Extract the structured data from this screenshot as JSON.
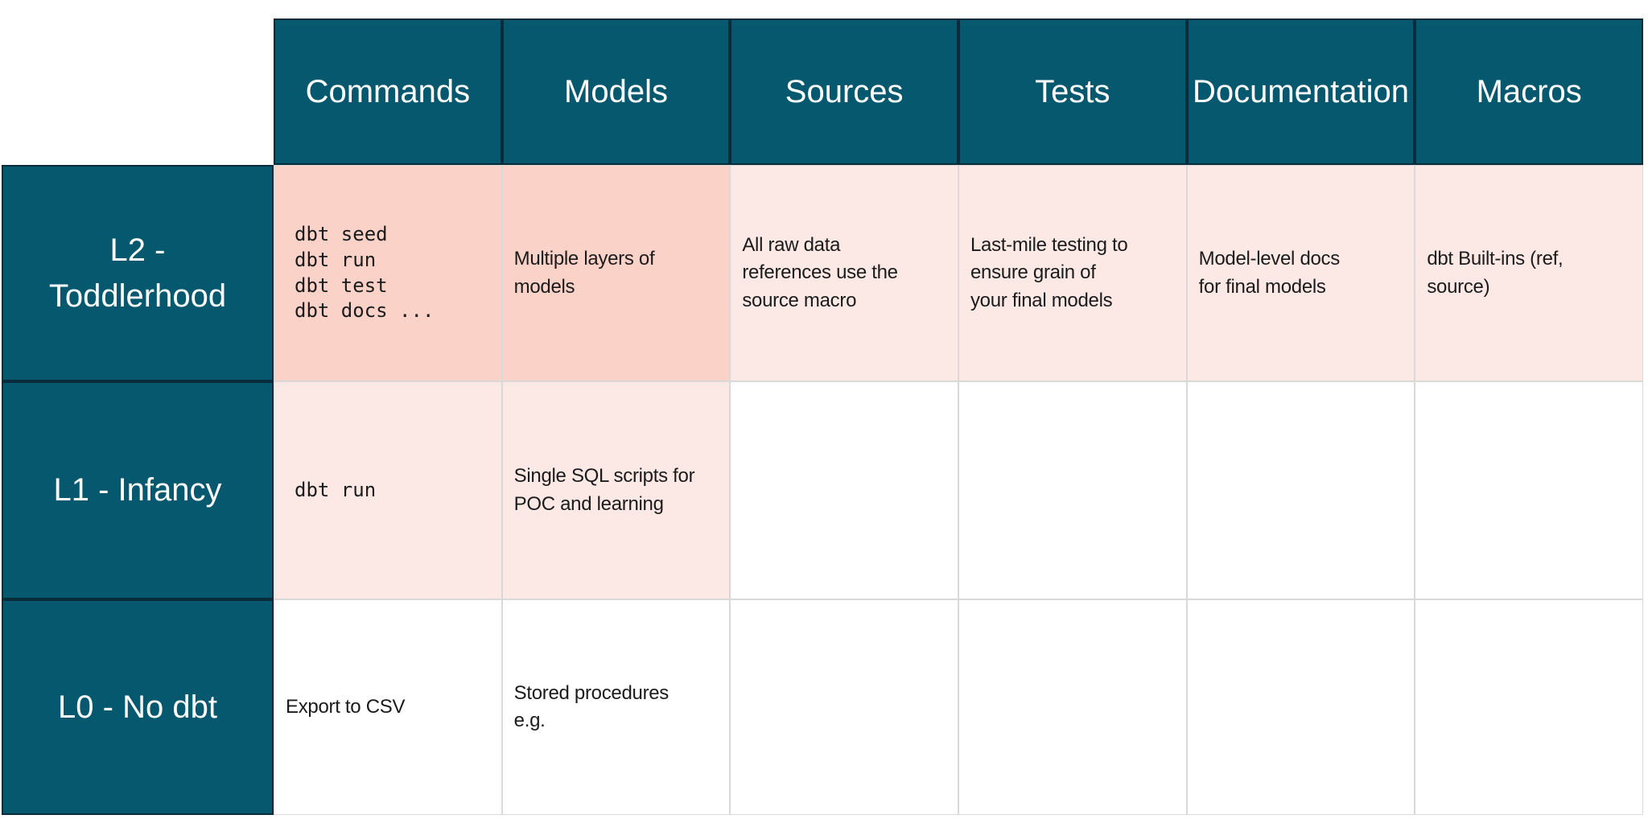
{
  "table": {
    "columns": [
      {
        "label": "Commands"
      },
      {
        "label": "Models"
      },
      {
        "label": "Sources"
      },
      {
        "label": "Tests"
      },
      {
        "label": "Documentation"
      },
      {
        "label": "Macros"
      }
    ],
    "rows": [
      {
        "label": "L2 -\nToddlerhood",
        "cells": [
          {
            "text": "dbt seed\ndbt run\ndbt test\ndbt docs ...",
            "highlight": "strong"
          },
          {
            "text": "Multiple layers of\nmodels",
            "highlight": "strong"
          },
          {
            "text": "All raw data\nreferences use the\nsource macro",
            "highlight": "light"
          },
          {
            "text": "Last-mile testing to\nensure grain of\nyour final models",
            "highlight": "light"
          },
          {
            "text": "Model-level docs\nfor final models",
            "highlight": "light"
          },
          {
            "text": "dbt Built-ins (ref,\nsource)",
            "highlight": "light"
          }
        ]
      },
      {
        "label": "L1 - Infancy",
        "cells": [
          {
            "text": "dbt run",
            "highlight": "light"
          },
          {
            "text": "Single SQL scripts for\nPOC and learning",
            "highlight": "light"
          },
          {
            "text": "",
            "highlight": "none"
          },
          {
            "text": "",
            "highlight": "none"
          },
          {
            "text": "",
            "highlight": "none"
          },
          {
            "text": "",
            "highlight": "none"
          }
        ]
      },
      {
        "label": "L0 - No dbt",
        "cells": [
          {
            "text": "Export to CSV",
            "highlight": "none"
          },
          {
            "text": "Stored procedures\ne.g.",
            "highlight": "none"
          },
          {
            "text": "",
            "highlight": "none"
          },
          {
            "text": "",
            "highlight": "none"
          },
          {
            "text": "",
            "highlight": "none"
          },
          {
            "text": "",
            "highlight": "none"
          }
        ]
      }
    ]
  },
  "colors": {
    "teal": "#06586F",
    "teal_border": "#0A2C3A",
    "pink_strong": "#FAD2C8",
    "pink_light": "#FCE9E5",
    "grid_line": "#D9D9D9",
    "text_dark": "#1B1B1B",
    "text_light": "#FFFFFF"
  }
}
